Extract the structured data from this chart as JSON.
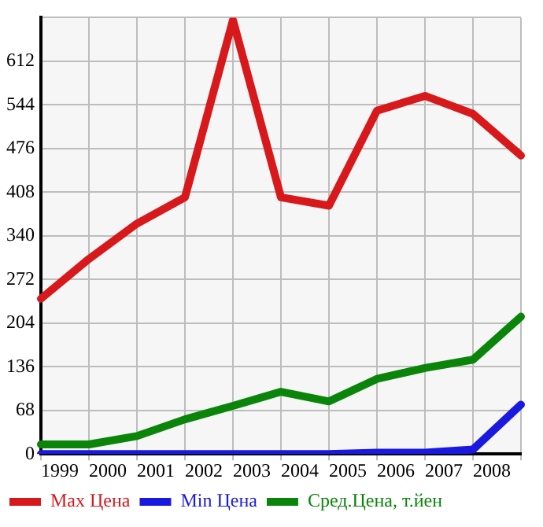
{
  "chart_data": {
    "type": "line",
    "categories": [
      "1999",
      "2000",
      "2001",
      "2002",
      "2003",
      "2004",
      "2005",
      "2006",
      "2007",
      "2008",
      null
    ],
    "series": [
      {
        "name": "Max Цена",
        "color": "#d7191c",
        "values": [
          242,
          304,
          359,
          400,
          676,
          400,
          387,
          535,
          558,
          530,
          465
        ]
      },
      {
        "name": "Min Цена",
        "color": "#1a1adf",
        "values": [
          0,
          0,
          0,
          0,
          0,
          0,
          0,
          2,
          2,
          7,
          77
        ]
      },
      {
        "name": "Сред.Цена, т.йен",
        "color": "#0a850a",
        "values": [
          15,
          15,
          28,
          54,
          75,
          97,
          82,
          117,
          134,
          147,
          214
        ]
      }
    ],
    "ylim": [
      0,
      680
    ],
    "yticks": [
      0,
      68,
      136,
      204,
      272,
      340,
      408,
      476,
      544,
      612,
      {
        "value": 680,
        "label": null
      }
    ],
    "grid": true,
    "legend": "bottom",
    "marker": "none",
    "line_style": "solid"
  }
}
